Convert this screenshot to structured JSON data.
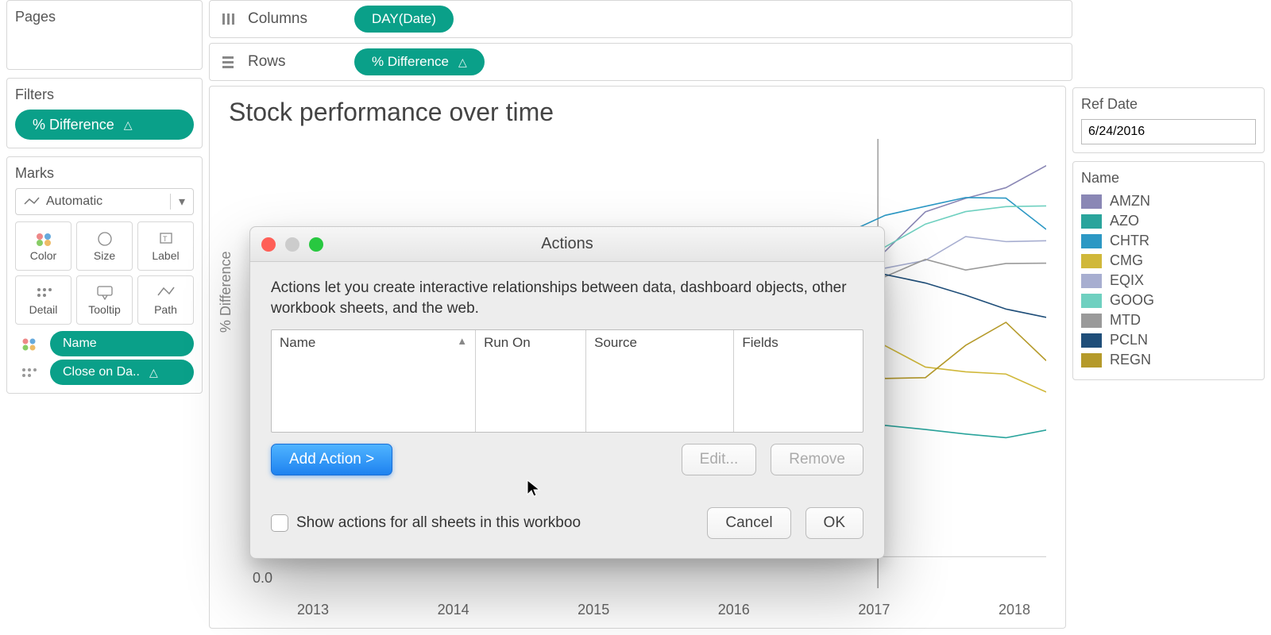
{
  "pages_label": "Pages",
  "filters_label": "Filters",
  "filter_pill": "% Difference",
  "marks_label": "Marks",
  "marks_type": "Automatic",
  "mark_cells": [
    "Color",
    "Size",
    "Label",
    "Detail",
    "Tooltip",
    "Path"
  ],
  "mark_pill_name": "Name",
  "mark_pill_close": "Close on Da..",
  "columns_label": "Columns",
  "rows_label": "Rows",
  "columns_pill": "DAY(Date)",
  "rows_pill": "% Difference",
  "chart": {
    "title": "Stock performance over time",
    "y_axis_label": "% Difference",
    "y_zero_label": "0.0",
    "x_ticks": [
      "2013",
      "2014",
      "2015",
      "2016",
      "2017",
      "2018"
    ],
    "line_width": 1.6,
    "background": "#ffffff",
    "ref_line_x": 0.78
  },
  "ref_date_label": "Ref Date",
  "ref_date_value": "6/24/2016",
  "legend_title": "Name",
  "legend": [
    {
      "label": "AMZN",
      "color": "#8a87b5"
    },
    {
      "label": "AZO",
      "color": "#2aa49c"
    },
    {
      "label": "CHTR",
      "color": "#2c98c4"
    },
    {
      "label": "CMG",
      "color": "#d0b83a"
    },
    {
      "label": "EQIX",
      "color": "#a7aed0"
    },
    {
      "label": "GOOG",
      "color": "#6fd0c0"
    },
    {
      "label": "MTD",
      "color": "#9a9a9a"
    },
    {
      "label": "PCLN",
      "color": "#1f4e79"
    },
    {
      "label": "REGN",
      "color": "#b59a2a"
    }
  ],
  "series": {
    "amzn": [
      0.48,
      0.47,
      0.49,
      0.5,
      0.49,
      0.5,
      0.51,
      0.53,
      0.52,
      0.54,
      0.57,
      0.6,
      0.63,
      0.68,
      0.72,
      0.75,
      0.82,
      0.88,
      0.9,
      0.93
    ],
    "azo": [
      0.5,
      0.5,
      0.49,
      0.5,
      0.5,
      0.48,
      0.47,
      0.45,
      0.43,
      0.42,
      0.4,
      0.37,
      0.35,
      0.33,
      0.32,
      0.34,
      0.36,
      0.35,
      0.34,
      0.33
    ],
    "chtr": [
      0.46,
      0.47,
      0.46,
      0.48,
      0.49,
      0.5,
      0.51,
      0.53,
      0.55,
      0.58,
      0.62,
      0.66,
      0.7,
      0.74,
      0.78,
      0.82,
      0.86,
      0.88,
      0.85,
      0.8
    ],
    "cmg": [
      0.52,
      0.51,
      0.5,
      0.49,
      0.48,
      0.46,
      0.44,
      0.42,
      0.4,
      0.38,
      0.36,
      0.4,
      0.44,
      0.52,
      0.58,
      0.55,
      0.5,
      0.48,
      0.46,
      0.45
    ],
    "eqix": [
      0.49,
      0.5,
      0.5,
      0.51,
      0.52,
      0.53,
      0.54,
      0.56,
      0.58,
      0.6,
      0.63,
      0.66,
      0.69,
      0.72,
      0.7,
      0.72,
      0.74,
      0.76,
      0.78,
      0.78
    ],
    "goog": [
      0.49,
      0.5,
      0.5,
      0.5,
      0.51,
      0.52,
      0.53,
      0.55,
      0.57,
      0.6,
      0.62,
      0.65,
      0.68,
      0.71,
      0.74,
      0.77,
      0.8,
      0.83,
      0.86,
      0.86
    ],
    "mtd": [
      0.49,
      0.49,
      0.48,
      0.49,
      0.5,
      0.51,
      0.52,
      0.54,
      0.56,
      0.58,
      0.6,
      0.62,
      0.64,
      0.66,
      0.68,
      0.7,
      0.71,
      0.72,
      0.73,
      0.72
    ],
    "pcln": [
      0.5,
      0.51,
      0.51,
      0.5,
      0.49,
      0.5,
      0.51,
      0.52,
      0.54,
      0.56,
      0.58,
      0.6,
      0.62,
      0.64,
      0.66,
      0.68,
      0.68,
      0.66,
      0.63,
      0.58
    ],
    "regn": [
      0.48,
      0.49,
      0.5,
      0.51,
      0.52,
      0.54,
      0.56,
      0.6,
      0.58,
      0.56,
      0.54,
      0.5,
      0.48,
      0.52,
      0.55,
      0.45,
      0.48,
      0.55,
      0.58,
      0.5
    ]
  },
  "dialog": {
    "title": "Actions",
    "desc": "Actions let you create interactive relationships between data, dashboard objects, other workbook sheets, and the web.",
    "cols": [
      "Name",
      "Run On",
      "Source",
      "Fields"
    ],
    "add_btn": "Add Action >",
    "edit_btn": "Edit...",
    "remove_btn": "Remove",
    "checkbox_label": "Show actions for all sheets in this workboo",
    "cancel": "Cancel",
    "ok": "OK"
  }
}
